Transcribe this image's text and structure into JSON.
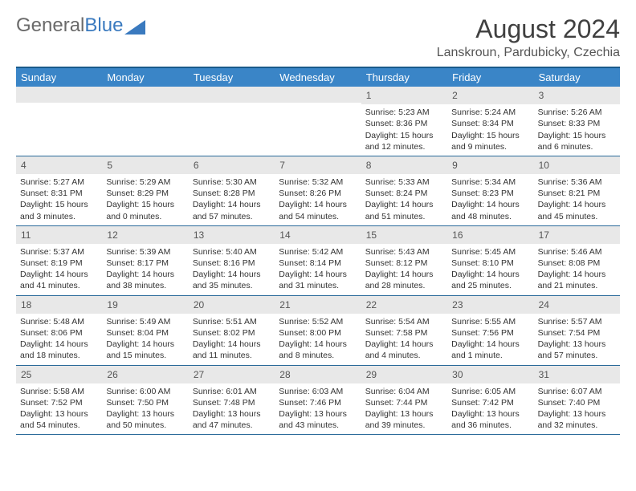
{
  "logo": {
    "text1": "General",
    "text2": "Blue"
  },
  "title": "August 2024",
  "subtitle": "Lanskroun, Pardubicky, Czechia",
  "colors": {
    "header_bg": "#3a85c7",
    "border": "#1a5a8a",
    "daynum_bg": "#e8e8e8",
    "logo_gray": "#6a6a6a",
    "logo_blue": "#3a7abf"
  },
  "dayNames": [
    "Sunday",
    "Monday",
    "Tuesday",
    "Wednesday",
    "Thursday",
    "Friday",
    "Saturday"
  ],
  "weeks": [
    [
      {
        "n": "",
        "sr": "",
        "ss": "",
        "dl": ""
      },
      {
        "n": "",
        "sr": "",
        "ss": "",
        "dl": ""
      },
      {
        "n": "",
        "sr": "",
        "ss": "",
        "dl": ""
      },
      {
        "n": "",
        "sr": "",
        "ss": "",
        "dl": ""
      },
      {
        "n": "1",
        "sr": "Sunrise: 5:23 AM",
        "ss": "Sunset: 8:36 PM",
        "dl": "Daylight: 15 hours and 12 minutes."
      },
      {
        "n": "2",
        "sr": "Sunrise: 5:24 AM",
        "ss": "Sunset: 8:34 PM",
        "dl": "Daylight: 15 hours and 9 minutes."
      },
      {
        "n": "3",
        "sr": "Sunrise: 5:26 AM",
        "ss": "Sunset: 8:33 PM",
        "dl": "Daylight: 15 hours and 6 minutes."
      }
    ],
    [
      {
        "n": "4",
        "sr": "Sunrise: 5:27 AM",
        "ss": "Sunset: 8:31 PM",
        "dl": "Daylight: 15 hours and 3 minutes."
      },
      {
        "n": "5",
        "sr": "Sunrise: 5:29 AM",
        "ss": "Sunset: 8:29 PM",
        "dl": "Daylight: 15 hours and 0 minutes."
      },
      {
        "n": "6",
        "sr": "Sunrise: 5:30 AM",
        "ss": "Sunset: 8:28 PM",
        "dl": "Daylight: 14 hours and 57 minutes."
      },
      {
        "n": "7",
        "sr": "Sunrise: 5:32 AM",
        "ss": "Sunset: 8:26 PM",
        "dl": "Daylight: 14 hours and 54 minutes."
      },
      {
        "n": "8",
        "sr": "Sunrise: 5:33 AM",
        "ss": "Sunset: 8:24 PM",
        "dl": "Daylight: 14 hours and 51 minutes."
      },
      {
        "n": "9",
        "sr": "Sunrise: 5:34 AM",
        "ss": "Sunset: 8:23 PM",
        "dl": "Daylight: 14 hours and 48 minutes."
      },
      {
        "n": "10",
        "sr": "Sunrise: 5:36 AM",
        "ss": "Sunset: 8:21 PM",
        "dl": "Daylight: 14 hours and 45 minutes."
      }
    ],
    [
      {
        "n": "11",
        "sr": "Sunrise: 5:37 AM",
        "ss": "Sunset: 8:19 PM",
        "dl": "Daylight: 14 hours and 41 minutes."
      },
      {
        "n": "12",
        "sr": "Sunrise: 5:39 AM",
        "ss": "Sunset: 8:17 PM",
        "dl": "Daylight: 14 hours and 38 minutes."
      },
      {
        "n": "13",
        "sr": "Sunrise: 5:40 AM",
        "ss": "Sunset: 8:16 PM",
        "dl": "Daylight: 14 hours and 35 minutes."
      },
      {
        "n": "14",
        "sr": "Sunrise: 5:42 AM",
        "ss": "Sunset: 8:14 PM",
        "dl": "Daylight: 14 hours and 31 minutes."
      },
      {
        "n": "15",
        "sr": "Sunrise: 5:43 AM",
        "ss": "Sunset: 8:12 PM",
        "dl": "Daylight: 14 hours and 28 minutes."
      },
      {
        "n": "16",
        "sr": "Sunrise: 5:45 AM",
        "ss": "Sunset: 8:10 PM",
        "dl": "Daylight: 14 hours and 25 minutes."
      },
      {
        "n": "17",
        "sr": "Sunrise: 5:46 AM",
        "ss": "Sunset: 8:08 PM",
        "dl": "Daylight: 14 hours and 21 minutes."
      }
    ],
    [
      {
        "n": "18",
        "sr": "Sunrise: 5:48 AM",
        "ss": "Sunset: 8:06 PM",
        "dl": "Daylight: 14 hours and 18 minutes."
      },
      {
        "n": "19",
        "sr": "Sunrise: 5:49 AM",
        "ss": "Sunset: 8:04 PM",
        "dl": "Daylight: 14 hours and 15 minutes."
      },
      {
        "n": "20",
        "sr": "Sunrise: 5:51 AM",
        "ss": "Sunset: 8:02 PM",
        "dl": "Daylight: 14 hours and 11 minutes."
      },
      {
        "n": "21",
        "sr": "Sunrise: 5:52 AM",
        "ss": "Sunset: 8:00 PM",
        "dl": "Daylight: 14 hours and 8 minutes."
      },
      {
        "n": "22",
        "sr": "Sunrise: 5:54 AM",
        "ss": "Sunset: 7:58 PM",
        "dl": "Daylight: 14 hours and 4 minutes."
      },
      {
        "n": "23",
        "sr": "Sunrise: 5:55 AM",
        "ss": "Sunset: 7:56 PM",
        "dl": "Daylight: 14 hours and 1 minute."
      },
      {
        "n": "24",
        "sr": "Sunrise: 5:57 AM",
        "ss": "Sunset: 7:54 PM",
        "dl": "Daylight: 13 hours and 57 minutes."
      }
    ],
    [
      {
        "n": "25",
        "sr": "Sunrise: 5:58 AM",
        "ss": "Sunset: 7:52 PM",
        "dl": "Daylight: 13 hours and 54 minutes."
      },
      {
        "n": "26",
        "sr": "Sunrise: 6:00 AM",
        "ss": "Sunset: 7:50 PM",
        "dl": "Daylight: 13 hours and 50 minutes."
      },
      {
        "n": "27",
        "sr": "Sunrise: 6:01 AM",
        "ss": "Sunset: 7:48 PM",
        "dl": "Daylight: 13 hours and 47 minutes."
      },
      {
        "n": "28",
        "sr": "Sunrise: 6:03 AM",
        "ss": "Sunset: 7:46 PM",
        "dl": "Daylight: 13 hours and 43 minutes."
      },
      {
        "n": "29",
        "sr": "Sunrise: 6:04 AM",
        "ss": "Sunset: 7:44 PM",
        "dl": "Daylight: 13 hours and 39 minutes."
      },
      {
        "n": "30",
        "sr": "Sunrise: 6:05 AM",
        "ss": "Sunset: 7:42 PM",
        "dl": "Daylight: 13 hours and 36 minutes."
      },
      {
        "n": "31",
        "sr": "Sunrise: 6:07 AM",
        "ss": "Sunset: 7:40 PM",
        "dl": "Daylight: 13 hours and 32 minutes."
      }
    ]
  ]
}
